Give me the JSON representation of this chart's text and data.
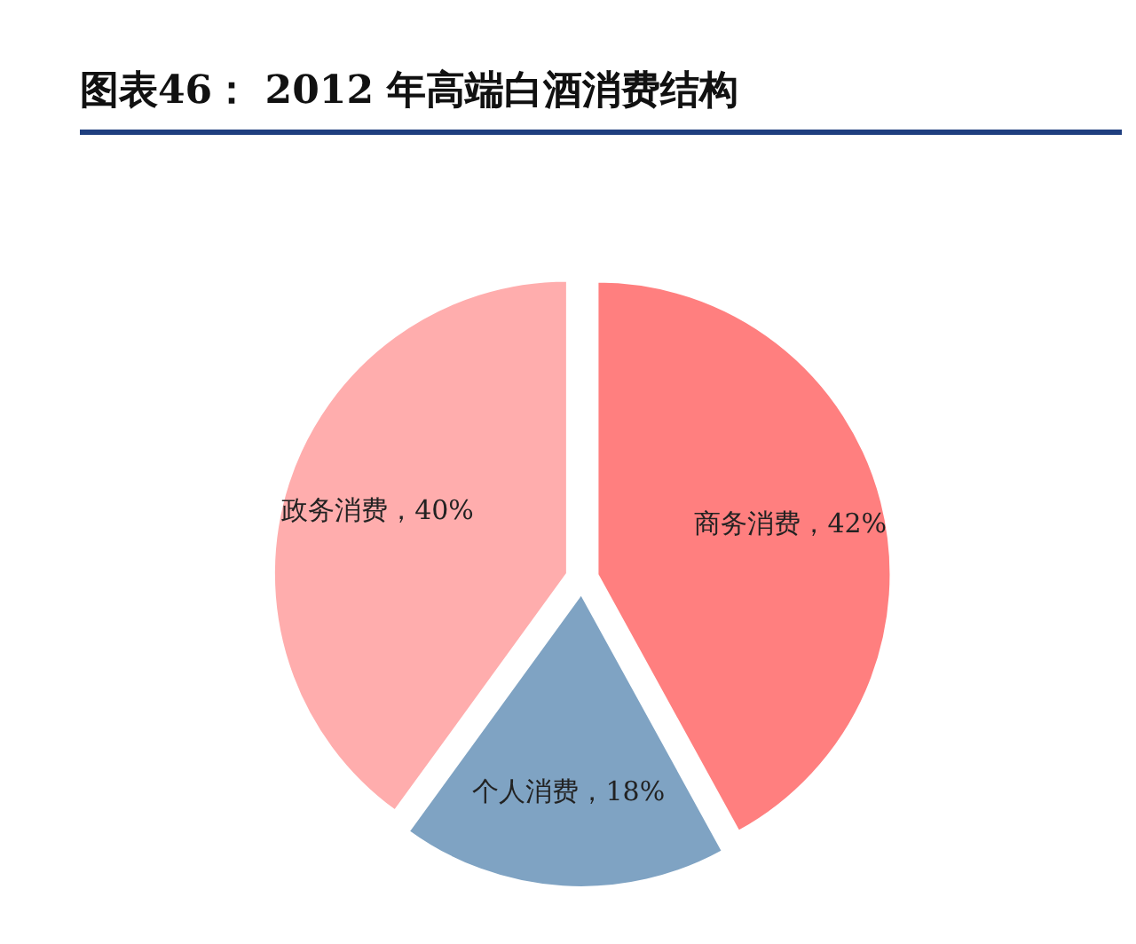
{
  "chart_data": {
    "type": "pie",
    "title": "图表46：  2012 年高端白酒消费结构",
    "categories": [
      "商务消费",
      "个人消费",
      "政务消费"
    ],
    "values": [
      42,
      18,
      40
    ],
    "colors": [
      "#ff7f7f",
      "#7fa3c3",
      "#ffadad"
    ],
    "value_labels": [
      "42%",
      "18%",
      "40%"
    ]
  }
}
